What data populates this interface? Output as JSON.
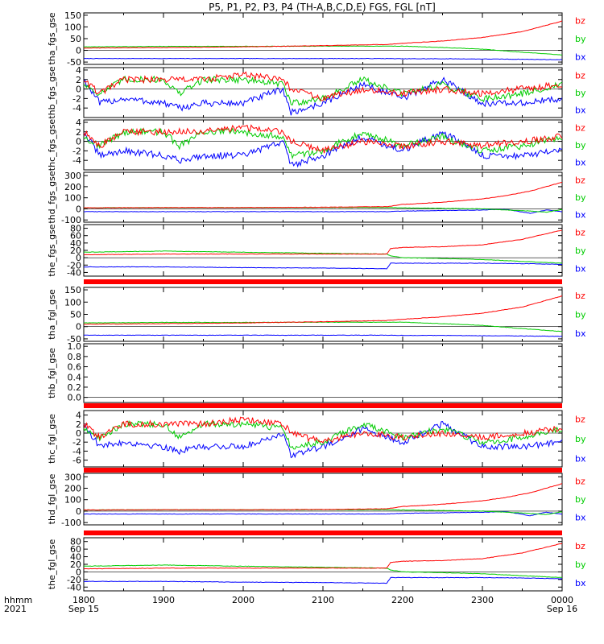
{
  "title": "P5, P1, P2, P3, P4 (TH-A,B,C,D,E) FGS, FGL [nT]",
  "colors": {
    "bx": "#0000ff",
    "by": "#00cc00",
    "bz": "#ff0000"
  },
  "legend": {
    "bx": "bx",
    "by": "by",
    "bz": "bz"
  },
  "time_axis": {
    "label_line1": "hhmm",
    "label_line2": "2021",
    "range_hours": [
      18,
      24
    ],
    "ticks": [
      {
        "hour": 18,
        "label": "1800",
        "sub": "Sep 15"
      },
      {
        "hour": 19,
        "label": "1900",
        "sub": ""
      },
      {
        "hour": 20,
        "label": "2000",
        "sub": ""
      },
      {
        "hour": 21,
        "label": "2100",
        "sub": ""
      },
      {
        "hour": 22,
        "label": "2200",
        "sub": ""
      },
      {
        "hour": 23,
        "label": "2300",
        "sub": ""
      },
      {
        "hour": 24,
        "label": "0000",
        "sub": "Sep 16"
      }
    ]
  },
  "chart_data": [
    {
      "type": "line",
      "ylabel": "tha_fgs_gse",
      "ylim": [
        -60,
        160
      ],
      "ticks": [
        150,
        100,
        50,
        0,
        -50
      ],
      "tick_labels": [
        "150",
        "100",
        "50",
        "0",
        "-50"
      ],
      "x": [
        18.0,
        19.0,
        20.0,
        21.0,
        21.8,
        22.0,
        22.5,
        23.0,
        23.5,
        24.0
      ],
      "series": [
        {
          "name": "bx",
          "values": [
            -35,
            -35,
            -35,
            -35,
            -35,
            -36,
            -36,
            -37,
            -38,
            -40
          ]
        },
        {
          "name": "by",
          "values": [
            15,
            17,
            17,
            18,
            18,
            18,
            12,
            5,
            -8,
            -20
          ]
        },
        {
          "name": "bz",
          "values": [
            10,
            12,
            15,
            20,
            25,
            30,
            40,
            55,
            80,
            125
          ]
        }
      ]
    },
    {
      "type": "line",
      "ylabel": "thb_fgs_gse",
      "ylim": [
        -6,
        4.5
      ],
      "ticks": [
        4,
        2,
        0,
        -2,
        -4
      ],
      "tick_labels": [
        "4",
        "2",
        "0",
        "-2",
        "-4"
      ],
      "x": [
        18.0,
        18.2,
        18.5,
        19.0,
        19.2,
        19.5,
        20.0,
        20.5,
        20.6,
        21.0,
        21.5,
        22.0,
        22.5,
        23.0,
        23.5,
        24.0
      ],
      "series": [
        {
          "name": "bx",
          "values": [
            2,
            -3,
            -2,
            -3,
            -4,
            -3,
            -3,
            0,
            -5,
            -3,
            1,
            -2,
            2,
            -3,
            -3,
            -2
          ]
        },
        {
          "name": "by",
          "values": [
            1,
            -1,
            2,
            2,
            -1,
            2,
            2,
            1,
            -3,
            -2,
            2,
            -1,
            1,
            -2,
            -1,
            1
          ]
        },
        {
          "name": "bz",
          "values": [
            2,
            -1,
            2,
            2,
            2,
            2,
            3,
            2,
            0,
            -2,
            0,
            -1,
            0,
            -1,
            0,
            1
          ]
        }
      ]
    },
    {
      "type": "line",
      "ylabel": "thc_fgs_gse",
      "ylim": [
        -6,
        4.5
      ],
      "ticks": [
        4,
        2,
        0,
        -2,
        -4
      ],
      "tick_labels": [
        "4",
        "2",
        "0",
        "-2",
        "-4"
      ],
      "x": [
        18.0,
        18.2,
        18.5,
        19.0,
        19.2,
        19.5,
        20.0,
        20.5,
        20.6,
        21.0,
        21.5,
        22.0,
        22.5,
        23.0,
        23.5,
        24.0
      ],
      "series": [
        {
          "name": "bx",
          "values": [
            2,
            -3,
            -2,
            -3,
            -4,
            -3,
            -3,
            0,
            -5,
            -3,
            1,
            -2,
            2,
            -3,
            -3,
            -2
          ]
        },
        {
          "name": "by",
          "values": [
            1,
            -1,
            2,
            2,
            -1,
            2,
            2,
            1,
            -3,
            -2,
            2,
            -1,
            1,
            -2,
            -1,
            1
          ]
        },
        {
          "name": "bz",
          "values": [
            2,
            -1,
            2,
            2,
            2,
            2,
            3,
            2,
            0,
            -2,
            0,
            -1,
            0,
            -1,
            0,
            1
          ]
        }
      ]
    },
    {
      "type": "line",
      "ylabel": "thd_fgs_gse",
      "ylim": [
        -120,
        330
      ],
      "ticks": [
        300,
        200,
        100,
        0,
        -100
      ],
      "tick_labels": [
        "300",
        "200",
        "100",
        "0",
        "-100"
      ],
      "x": [
        18.0,
        19.0,
        20.0,
        21.0,
        21.8,
        22.0,
        22.5,
        23.0,
        23.3,
        23.6,
        23.8,
        24.0
      ],
      "series": [
        {
          "name": "bx",
          "values": [
            -25,
            -25,
            -25,
            -25,
            -25,
            -20,
            -15,
            -10,
            -5,
            -40,
            -10,
            -25
          ]
        },
        {
          "name": "by",
          "values": [
            10,
            12,
            12,
            13,
            13,
            10,
            5,
            0,
            -10,
            -20,
            -30,
            -5
          ]
        },
        {
          "name": "bz",
          "values": [
            10,
            12,
            12,
            15,
            20,
            40,
            60,
            90,
            120,
            160,
            200,
            240
          ]
        }
      ]
    },
    {
      "type": "line",
      "ylabel": "the_fgs_gse",
      "ylim": [
        -50,
        90
      ],
      "ticks": [
        80,
        60,
        40,
        20,
        0,
        -20,
        -40
      ],
      "tick_labels": [
        "80",
        "60",
        "40",
        "20",
        "0",
        "-20",
        "-40"
      ],
      "x": [
        18.0,
        19.0,
        20.0,
        21.0,
        21.8,
        21.85,
        22.0,
        22.5,
        23.0,
        23.5,
        24.0
      ],
      "series": [
        {
          "name": "bx",
          "values": [
            -25,
            -25,
            -27,
            -28,
            -30,
            -15,
            -15,
            -15,
            -15,
            -16,
            -18
          ]
        },
        {
          "name": "by",
          "values": [
            15,
            18,
            15,
            12,
            10,
            5,
            0,
            -2,
            -5,
            -10,
            -15
          ]
        },
        {
          "name": "bz",
          "values": [
            8,
            10,
            10,
            10,
            10,
            25,
            28,
            30,
            35,
            50,
            75
          ]
        }
      ]
    },
    {
      "type": "line",
      "ylabel": "tha_fgl_gse",
      "ylim": [
        -60,
        160
      ],
      "ticks": [
        150,
        100,
        50,
        0,
        -50
      ],
      "tick_labels": [
        "150",
        "100",
        "50",
        "0",
        "-50"
      ],
      "x": [
        18.0,
        19.0,
        20.0,
        21.0,
        21.8,
        22.0,
        22.5,
        23.0,
        23.5,
        24.0
      ],
      "series": [
        {
          "name": "bx",
          "values": [
            -35,
            -35,
            -35,
            -35,
            -35,
            -36,
            -36,
            -37,
            -38,
            -40
          ]
        },
        {
          "name": "by",
          "values": [
            15,
            17,
            17,
            18,
            18,
            18,
            12,
            5,
            -8,
            -20
          ]
        },
        {
          "name": "bz",
          "values": [
            10,
            12,
            15,
            20,
            25,
            30,
            40,
            55,
            80,
            125
          ]
        }
      ]
    },
    {
      "type": "line",
      "ylabel": "thb_fgl_gse",
      "ylim": [
        -0.1,
        1.05
      ],
      "ticks": [
        1.0,
        0.8,
        0.6,
        0.4,
        0.2,
        0.0
      ],
      "tick_labels": [
        "1.0",
        "0.8",
        "0.6",
        "0.4",
        "0.2",
        "0.0"
      ],
      "x": [],
      "series": []
    },
    {
      "type": "line",
      "ylabel": "thc_fgl_gse",
      "ylim": [
        -7.5,
        5
      ],
      "ticks": [
        4,
        2,
        0,
        -2,
        -4,
        -6
      ],
      "tick_labels": [
        "4",
        "2",
        "0",
        "-2",
        "-4",
        "-6"
      ],
      "x": [
        18.0,
        18.2,
        18.5,
        19.0,
        19.2,
        19.5,
        20.0,
        20.5,
        20.6,
        21.0,
        21.5,
        22.0,
        22.5,
        23.0,
        23.5,
        24.0
      ],
      "series": [
        {
          "name": "bx",
          "values": [
            2,
            -3,
            -2,
            -3,
            -4,
            -3,
            -3,
            0,
            -5,
            -3,
            1,
            -2,
            2,
            -3,
            -3,
            -2
          ]
        },
        {
          "name": "by",
          "values": [
            1,
            -1,
            2,
            2,
            -1,
            2,
            2,
            1,
            -3,
            -2,
            2,
            -1,
            1,
            -2,
            -1,
            1
          ]
        },
        {
          "name": "bz",
          "values": [
            2,
            -1,
            2,
            2,
            2,
            2,
            3,
            2,
            0,
            -2,
            0,
            -1,
            0,
            -1,
            0,
            1
          ]
        }
      ]
    },
    {
      "type": "line",
      "ylabel": "thd_fgl_gse",
      "ylim": [
        -120,
        330
      ],
      "ticks": [
        300,
        200,
        100,
        0,
        -100
      ],
      "tick_labels": [
        "300",
        "200",
        "100",
        "0",
        "-100"
      ],
      "x": [
        18.0,
        19.0,
        20.0,
        21.0,
        21.8,
        22.0,
        22.5,
        23.0,
        23.3,
        23.6,
        23.8,
        24.0
      ],
      "series": [
        {
          "name": "bx",
          "values": [
            -25,
            -25,
            -25,
            -25,
            -25,
            -20,
            -15,
            -10,
            -5,
            -40,
            -10,
            -25
          ]
        },
        {
          "name": "by",
          "values": [
            10,
            12,
            12,
            13,
            13,
            10,
            5,
            0,
            -10,
            -20,
            -30,
            -5
          ]
        },
        {
          "name": "bz",
          "values": [
            10,
            12,
            12,
            15,
            20,
            40,
            60,
            90,
            120,
            160,
            200,
            240
          ]
        }
      ]
    },
    {
      "type": "line",
      "ylabel": "the_fgl_gse",
      "ylim": [
        -50,
        90
      ],
      "ticks": [
        80,
        60,
        40,
        20,
        0,
        -20,
        -40
      ],
      "tick_labels": [
        "80",
        "60",
        "40",
        "20",
        "0",
        "-20",
        "-40"
      ],
      "x": [
        18.0,
        19.0,
        20.0,
        21.0,
        21.8,
        21.85,
        22.0,
        22.5,
        23.0,
        23.5,
        24.0
      ],
      "series": [
        {
          "name": "bx",
          "values": [
            -25,
            -25,
            -27,
            -28,
            -30,
            -15,
            -15,
            -15,
            -15,
            -16,
            -18
          ]
        },
        {
          "name": "by",
          "values": [
            15,
            18,
            15,
            12,
            10,
            5,
            0,
            -2,
            -5,
            -10,
            -15
          ]
        },
        {
          "name": "bz",
          "values": [
            8,
            10,
            10,
            10,
            10,
            25,
            28,
            30,
            35,
            50,
            75
          ]
        }
      ]
    }
  ]
}
